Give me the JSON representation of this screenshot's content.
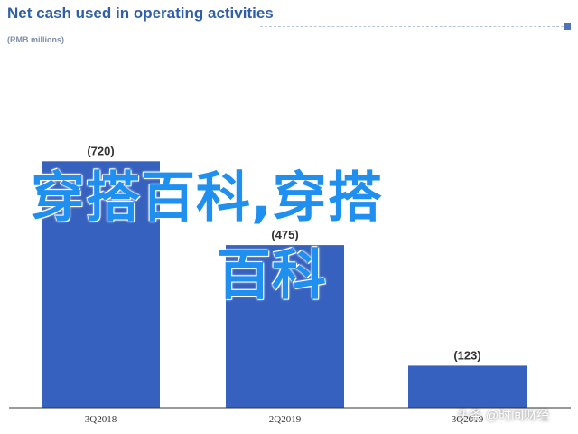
{
  "chart_data": {
    "type": "bar",
    "title": "Net cash used in operating activities",
    "subtitle": "(RMB millions)",
    "categories": [
      "3Q2018",
      "2Q2019",
      "3Q2019"
    ],
    "values": [
      -720,
      -475,
      -123
    ],
    "data_labels": [
      "(720)",
      "(475)",
      "(123)"
    ],
    "ylim": [
      0,
      800
    ],
    "grid": false,
    "colors": {
      "bar": "#3761be",
      "label_bubble": "#ffffff",
      "axis": "#333333"
    }
  },
  "overlay": {
    "line1": "穿搭百科,穿搭",
    "line2": "百科",
    "color": "#1f8ff0"
  },
  "watermark": "头条 @时间财经"
}
